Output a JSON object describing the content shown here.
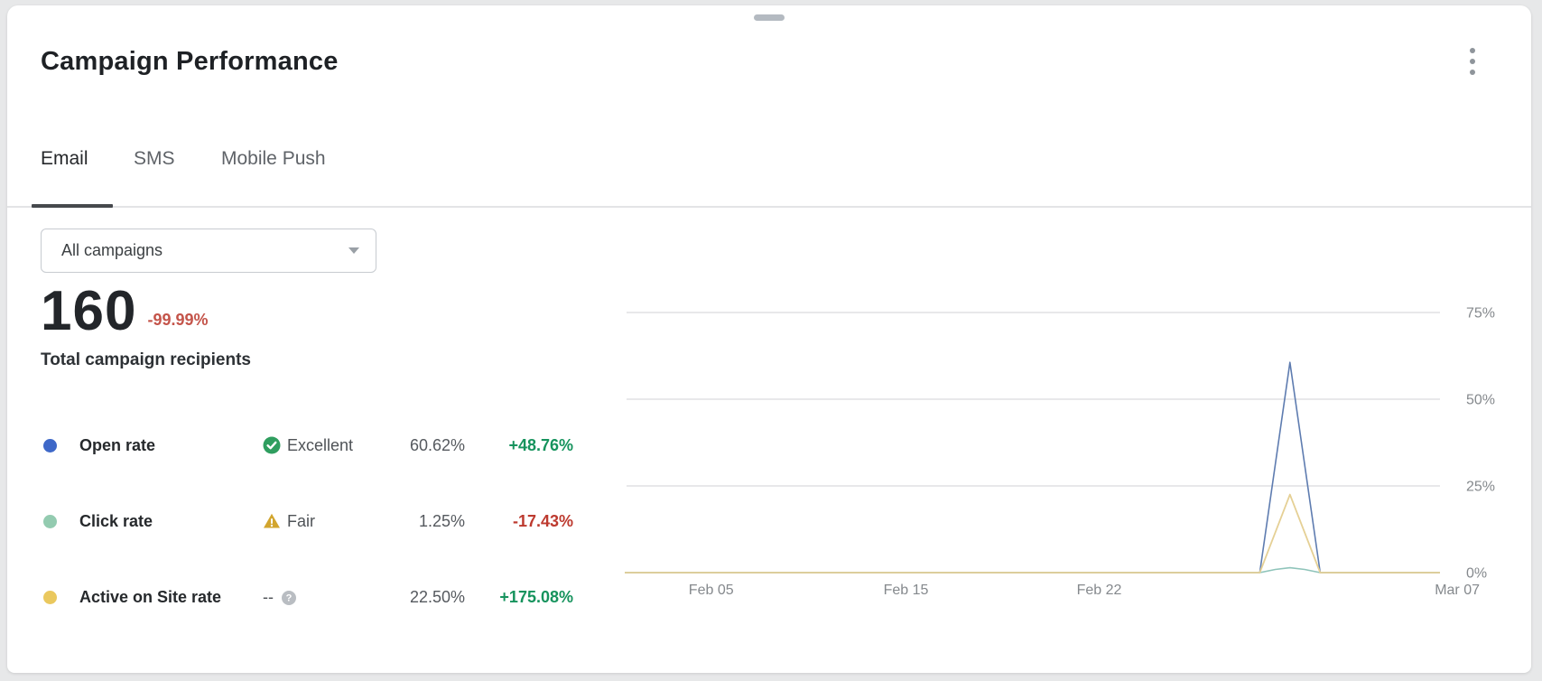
{
  "window": {
    "drag_handle_icon": "drag-handle",
    "menu_icon": "kebab-menu"
  },
  "header": {
    "title": "Campaign Performance"
  },
  "tabs": [
    {
      "label": "Email",
      "active": true
    },
    {
      "label": "SMS",
      "active": false
    },
    {
      "label": "Mobile Push",
      "active": false
    }
  ],
  "filter": {
    "selected_value": "All campaigns",
    "icon": "chevron-down-icon"
  },
  "summary": {
    "value": "160",
    "delta": "-99.99%",
    "delta_color": "#c4544a",
    "caption": "Total campaign recipients"
  },
  "metrics": [
    {
      "dot_color": "#3e68c8",
      "label": "Open rate",
      "status_icon": "check-circle-icon",
      "status_icon_color": "#2f9e5f",
      "status_text": "Excellent",
      "icon_position": "before",
      "value": "60.62%",
      "delta": "+48.76%",
      "delta_color": "#16935d"
    },
    {
      "dot_color": "#93cbb0",
      "label": "Click rate",
      "status_icon": "warning-triangle-icon",
      "status_icon_color": "#d2a52e",
      "status_text": "Fair",
      "icon_position": "before",
      "value": "1.25%",
      "delta": "-17.43%",
      "delta_color": "#bd3a2f"
    },
    {
      "dot_color": "#eac85e",
      "label": "Active on Site rate",
      "status_icon": "help-circle-icon",
      "status_icon_color": "#b9bdc2",
      "status_text": "--",
      "icon_position": "after",
      "value": "22.50%",
      "delta": "+175.08%",
      "delta_color": "#16935d"
    }
  ],
  "chart_data": {
    "type": "line",
    "title": "",
    "xlabel": "",
    "ylabel": "",
    "grid": true,
    "legend_position": "left-metric-list",
    "ylim": [
      0,
      81.7
    ],
    "y_ticks": [
      {
        "label": "0%",
        "value": 0
      },
      {
        "label": "25%",
        "value": 25
      },
      {
        "label": "50%",
        "value": 50
      },
      {
        "label": "75%",
        "value": 75
      }
    ],
    "x_ticks": [
      {
        "label": "Feb 05",
        "pos": 0.106
      },
      {
        "label": "Feb 15",
        "pos": 0.345
      },
      {
        "label": "Feb 22",
        "pos": 0.582
      },
      {
        "label": "Mar 07",
        "pos": 1.0
      }
    ],
    "series": [
      {
        "name": "Open rate",
        "color": "#5e7cb0",
        "width": 1.6,
        "points": [
          [
            0,
            0
          ],
          [
            0.779,
            0
          ],
          [
            0.816,
            60.62
          ],
          [
            0.853,
            0
          ],
          [
            1,
            0
          ]
        ]
      },
      {
        "name": "Click rate",
        "color": "#8fc4ba",
        "width": 1.6,
        "points": [
          [
            0,
            0
          ],
          [
            0.779,
            0
          ],
          [
            0.798,
            0.9
          ],
          [
            0.816,
            1.4
          ],
          [
            0.834,
            0.9
          ],
          [
            0.853,
            0
          ],
          [
            1,
            0
          ]
        ]
      },
      {
        "name": "Active on Site rate",
        "color": "#e5d095",
        "width": 1.8,
        "points": [
          [
            0,
            0
          ],
          [
            0.779,
            0
          ],
          [
            0.816,
            22.5
          ],
          [
            0.853,
            0
          ],
          [
            1,
            0
          ]
        ]
      }
    ],
    "gridline_color": "#e0e1e3",
    "tick_label_color": "#85898d"
  }
}
